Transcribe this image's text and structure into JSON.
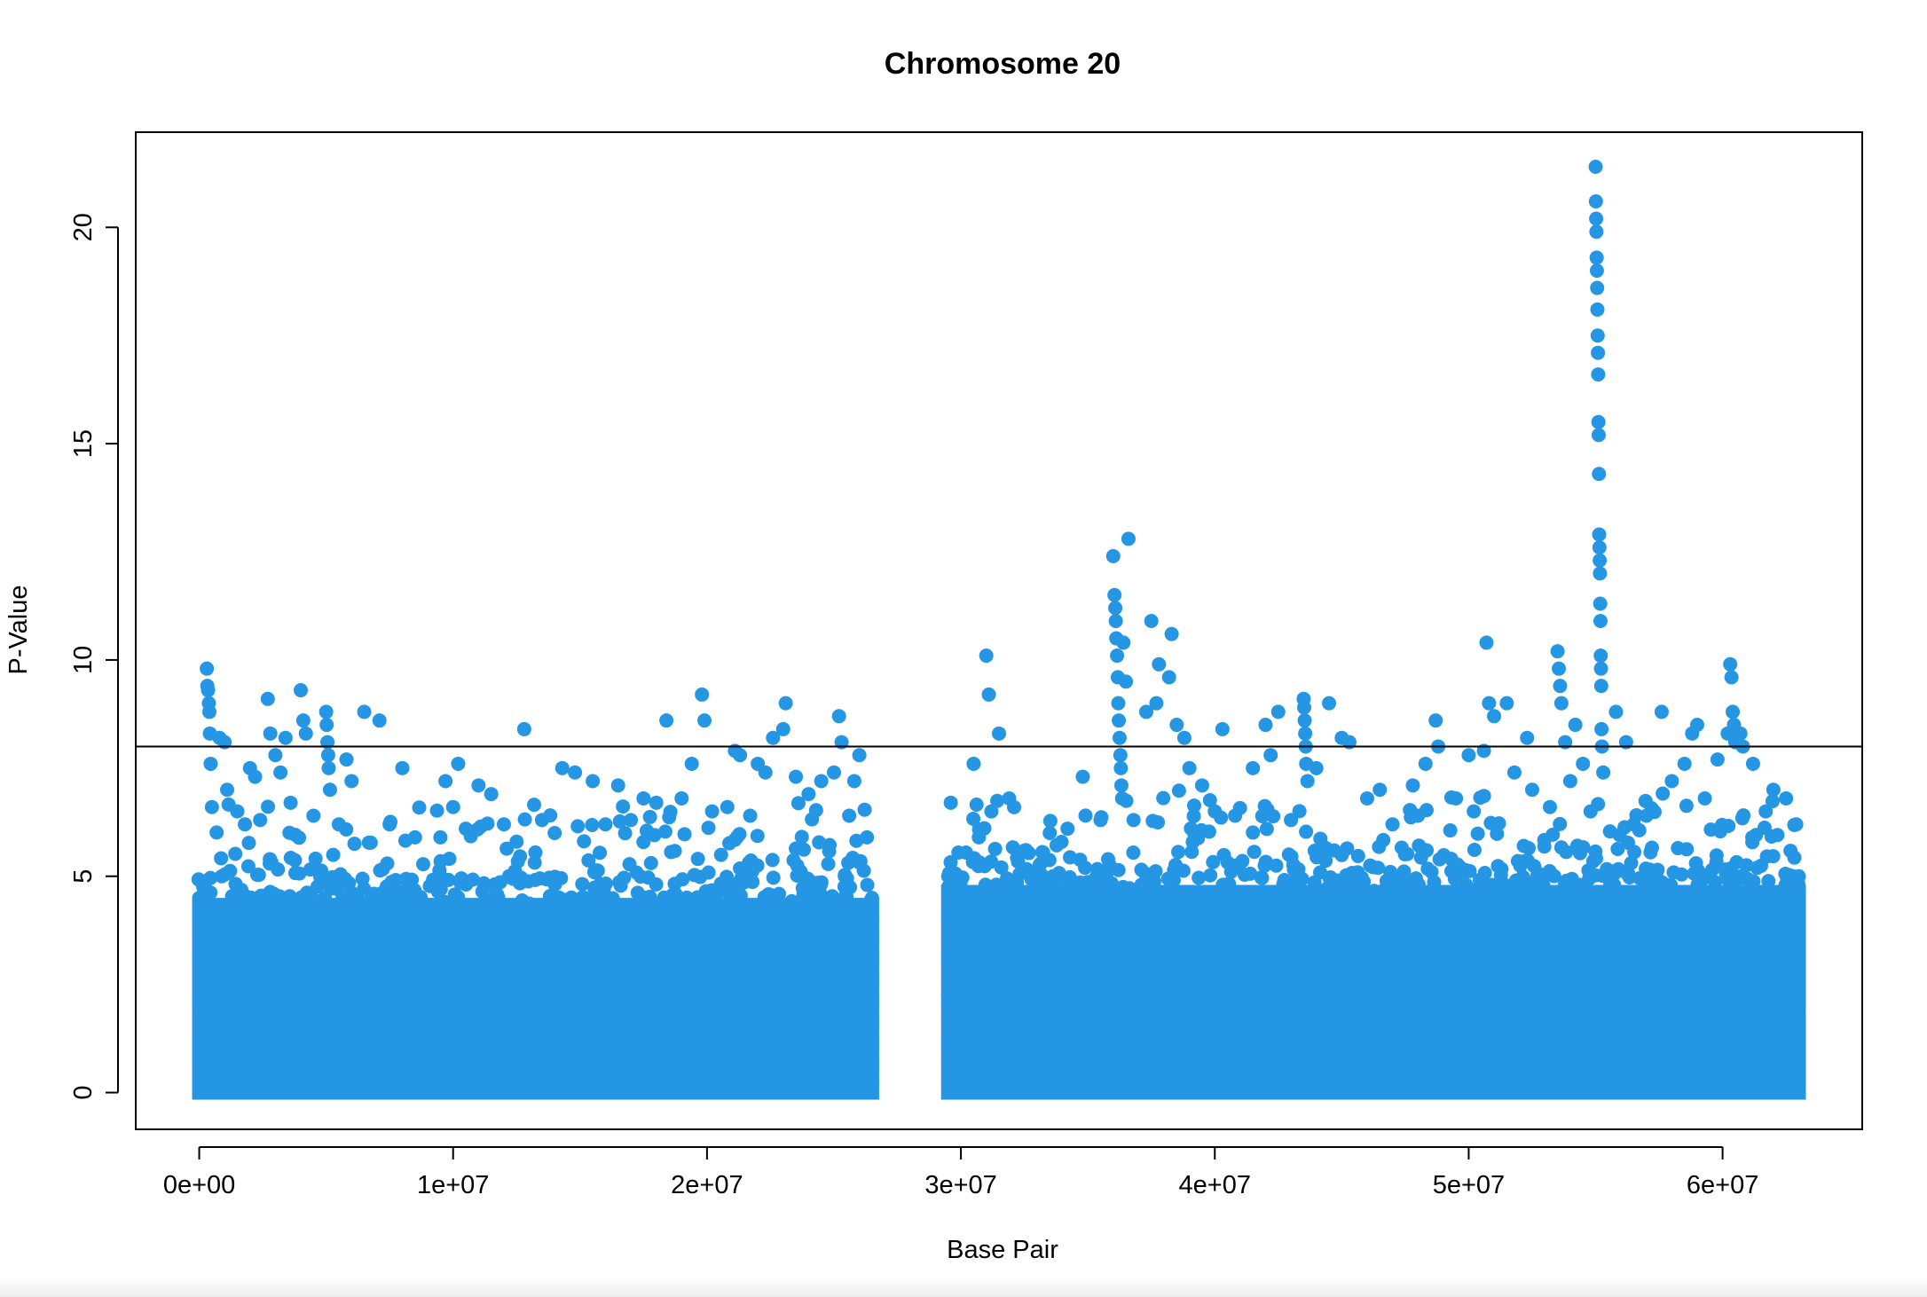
{
  "colors": {
    "points": "#2596e4",
    "frame": "#000000",
    "line": "#000000",
    "background": "#ffffff"
  },
  "chart_data": {
    "type": "scatter",
    "title": "Chromosome 20",
    "xlabel": "Base Pair",
    "ylabel": "P-Value",
    "xlim": [
      -2500000,
      65500000
    ],
    "ylim": [
      -0.85,
      22.2
    ],
    "xticks": [
      0,
      10000000,
      20000000,
      30000000,
      40000000,
      50000000,
      60000000
    ],
    "xtick_labels": [
      "0e+00",
      "1e+07",
      "2e+07",
      "3e+07",
      "4e+07",
      "5e+07",
      "6e+07"
    ],
    "yticks": [
      0,
      5,
      10,
      15,
      20
    ],
    "ytick_labels": [
      "0",
      "5",
      "10",
      "15",
      "20"
    ],
    "threshold": 8,
    "grid": false,
    "legend": "none",
    "dense_bands": [
      {
        "x_start": 0,
        "x_end": 26500000,
        "y_min": 0,
        "y_max": 4.5
      },
      {
        "x_start": 29500000,
        "x_end": 63000000,
        "y_min": 0,
        "y_max": 4.8
      }
    ],
    "series": [
      {
        "points": [
          [
            300000,
            9.8
          ],
          [
            320000,
            9.4
          ],
          [
            350000,
            9.3
          ],
          [
            380000,
            9.0
          ],
          [
            400000,
            8.8
          ],
          [
            420000,
            8.3
          ],
          [
            450000,
            7.6
          ],
          [
            500000,
            6.6
          ],
          [
            800000,
            8.2
          ],
          [
            1000000,
            8.1
          ],
          [
            1100000,
            7.0
          ],
          [
            1500000,
            6.5
          ],
          [
            1800000,
            6.2
          ],
          [
            2000000,
            7.5
          ],
          [
            2200000,
            7.3
          ],
          [
            2400000,
            6.3
          ],
          [
            2700000,
            9.1
          ],
          [
            2800000,
            8.3
          ],
          [
            3000000,
            7.8
          ],
          [
            3200000,
            7.4
          ],
          [
            3400000,
            8.2
          ],
          [
            3600000,
            6.7
          ],
          [
            4000000,
            9.3
          ],
          [
            4100000,
            8.6
          ],
          [
            4200000,
            8.3
          ],
          [
            4500000,
            6.4
          ],
          [
            5000000,
            8.8
          ],
          [
            5020000,
            8.5
          ],
          [
            5050000,
            8.1
          ],
          [
            5080000,
            7.8
          ],
          [
            5100000,
            7.5
          ],
          [
            5150000,
            7.0
          ],
          [
            5500000,
            6.2
          ],
          [
            5800000,
            7.7
          ],
          [
            6000000,
            7.2
          ],
          [
            6500000,
            8.8
          ],
          [
            7100000,
            8.6
          ],
          [
            7500000,
            6.2
          ],
          [
            8000000,
            7.5
          ],
          [
            8500000,
            5.9
          ],
          [
            9500000,
            5.9
          ],
          [
            9700000,
            7.2
          ],
          [
            10000000,
            6.6
          ],
          [
            10200000,
            7.6
          ],
          [
            10500000,
            6.1
          ],
          [
            11000000,
            7.1
          ],
          [
            11500000,
            6.9
          ],
          [
            12000000,
            6.2
          ],
          [
            12500000,
            5.8
          ],
          [
            12800000,
            8.4
          ],
          [
            13500000,
            6.3
          ],
          [
            14000000,
            6.0
          ],
          [
            14300000,
            7.5
          ],
          [
            14800000,
            7.4
          ],
          [
            15500000,
            7.2
          ],
          [
            16000000,
            6.2
          ],
          [
            16500000,
            7.1
          ],
          [
            17000000,
            6.3
          ],
          [
            17500000,
            6.8
          ],
          [
            18000000,
            6.7
          ],
          [
            18400000,
            8.6
          ],
          [
            19000000,
            6.8
          ],
          [
            19400000,
            7.6
          ],
          [
            19800000,
            9.2
          ],
          [
            19900000,
            8.6
          ],
          [
            20200000,
            6.5
          ],
          [
            20800000,
            6.6
          ],
          [
            21100000,
            7.9
          ],
          [
            21300000,
            7.8
          ],
          [
            21700000,
            6.4
          ],
          [
            22000000,
            7.6
          ],
          [
            22300000,
            7.4
          ],
          [
            22600000,
            8.2
          ],
          [
            23000000,
            8.4
          ],
          [
            23100000,
            9.0
          ],
          [
            23500000,
            7.3
          ],
          [
            24000000,
            6.9
          ],
          [
            24500000,
            7.2
          ],
          [
            25000000,
            7.4
          ],
          [
            25200000,
            8.7
          ],
          [
            25300000,
            8.1
          ],
          [
            25600000,
            6.4
          ],
          [
            25800000,
            7.2
          ],
          [
            26000000,
            7.8
          ],
          [
            26300000,
            5.9
          ],
          [
            29600000,
            6.7
          ],
          [
            30500000,
            7.6
          ],
          [
            31000000,
            10.1
          ],
          [
            31100000,
            9.2
          ],
          [
            31200000,
            6.5
          ],
          [
            31500000,
            8.3
          ],
          [
            31900000,
            6.8
          ],
          [
            32500000,
            5.1
          ],
          [
            33500000,
            6.0
          ],
          [
            34200000,
            6.1
          ],
          [
            34800000,
            7.3
          ],
          [
            35500000,
            6.3
          ],
          [
            36000000,
            12.4
          ],
          [
            36050000,
            11.5
          ],
          [
            36080000,
            11.2
          ],
          [
            36100000,
            10.9
          ],
          [
            36120000,
            10.5
          ],
          [
            36150000,
            10.1
          ],
          [
            36180000,
            9.6
          ],
          [
            36200000,
            9.0
          ],
          [
            36220000,
            8.6
          ],
          [
            36250000,
            8.2
          ],
          [
            36280000,
            7.8
          ],
          [
            36300000,
            7.5
          ],
          [
            36320000,
            7.1
          ],
          [
            36350000,
            6.8
          ],
          [
            36400000,
            10.4
          ],
          [
            36500000,
            9.5
          ],
          [
            36600000,
            12.8
          ],
          [
            36800000,
            6.3
          ],
          [
            37300000,
            8.8
          ],
          [
            37500000,
            10.9
          ],
          [
            37700000,
            9.0
          ],
          [
            37800000,
            9.9
          ],
          [
            38200000,
            9.6
          ],
          [
            38300000,
            10.6
          ],
          [
            38500000,
            8.5
          ],
          [
            38800000,
            8.2
          ],
          [
            39000000,
            7.5
          ],
          [
            39500000,
            7.1
          ],
          [
            40000000,
            6.5
          ],
          [
            40300000,
            8.4
          ],
          [
            40800000,
            6.4
          ],
          [
            41500000,
            7.5
          ],
          [
            42000000,
            8.5
          ],
          [
            42200000,
            7.8
          ],
          [
            42500000,
            8.8
          ],
          [
            43000000,
            6.3
          ],
          [
            43500000,
            9.1
          ],
          [
            43520000,
            8.9
          ],
          [
            43540000,
            8.6
          ],
          [
            43560000,
            8.3
          ],
          [
            43580000,
            8.0
          ],
          [
            43600000,
            7.6
          ],
          [
            43650000,
            7.2
          ],
          [
            44000000,
            7.5
          ],
          [
            44500000,
            9.0
          ],
          [
            45000000,
            8.2
          ],
          [
            45300000,
            8.1
          ],
          [
            46000000,
            6.8
          ],
          [
            46500000,
            7.0
          ],
          [
            47000000,
            6.2
          ],
          [
            47800000,
            7.1
          ],
          [
            48000000,
            6.4
          ],
          [
            48300000,
            7.6
          ],
          [
            48700000,
            8.6
          ],
          [
            48800000,
            8.0
          ],
          [
            49500000,
            6.8
          ],
          [
            50000000,
            7.8
          ],
          [
            50200000,
            6.5
          ],
          [
            50600000,
            7.9
          ],
          [
            50700000,
            10.4
          ],
          [
            50800000,
            9.0
          ],
          [
            51000000,
            8.7
          ],
          [
            51500000,
            9.0
          ],
          [
            51800000,
            7.4
          ],
          [
            52300000,
            8.2
          ],
          [
            52500000,
            7.0
          ],
          [
            53200000,
            6.6
          ],
          [
            53500000,
            10.2
          ],
          [
            53550000,
            9.8
          ],
          [
            53600000,
            9.4
          ],
          [
            53650000,
            9.0
          ],
          [
            53800000,
            8.1
          ],
          [
            54000000,
            7.2
          ],
          [
            54200000,
            8.5
          ],
          [
            54500000,
            7.6
          ],
          [
            54800000,
            6.5
          ],
          [
            55000000,
            21.4
          ],
          [
            55010000,
            20.6
          ],
          [
            55020000,
            20.2
          ],
          [
            55030000,
            19.9
          ],
          [
            55040000,
            19.3
          ],
          [
            55050000,
            19.0
          ],
          [
            55060000,
            18.6
          ],
          [
            55070000,
            18.1
          ],
          [
            55080000,
            17.5
          ],
          [
            55090000,
            17.1
          ],
          [
            55100000,
            16.6
          ],
          [
            55110000,
            15.5
          ],
          [
            55120000,
            15.2
          ],
          [
            55130000,
            14.3
          ],
          [
            55140000,
            12.9
          ],
          [
            55150000,
            12.6
          ],
          [
            55160000,
            12.3
          ],
          [
            55170000,
            12.0
          ],
          [
            55180000,
            11.3
          ],
          [
            55190000,
            10.9
          ],
          [
            55200000,
            10.1
          ],
          [
            55210000,
            9.8
          ],
          [
            55220000,
            9.4
          ],
          [
            55230000,
            8.4
          ],
          [
            55250000,
            8.0
          ],
          [
            55300000,
            7.4
          ],
          [
            55800000,
            8.8
          ],
          [
            56200000,
            8.1
          ],
          [
            56500000,
            6.2
          ],
          [
            57000000,
            6.4
          ],
          [
            57600000,
            8.8
          ],
          [
            58000000,
            7.2
          ],
          [
            58500000,
            7.6
          ],
          [
            58800000,
            8.3
          ],
          [
            59000000,
            8.5
          ],
          [
            59300000,
            6.8
          ],
          [
            59800000,
            7.7
          ],
          [
            60200000,
            8.3
          ],
          [
            60300000,
            9.9
          ],
          [
            60350000,
            9.6
          ],
          [
            60400000,
            8.8
          ],
          [
            60450000,
            8.5
          ],
          [
            60500000,
            8.1
          ],
          [
            60700000,
            8.3
          ],
          [
            60800000,
            8.0
          ],
          [
            61200000,
            7.6
          ],
          [
            61700000,
            6.5
          ],
          [
            62000000,
            7.0
          ],
          [
            62500000,
            6.8
          ],
          [
            62900000,
            6.2
          ]
        ]
      }
    ]
  }
}
